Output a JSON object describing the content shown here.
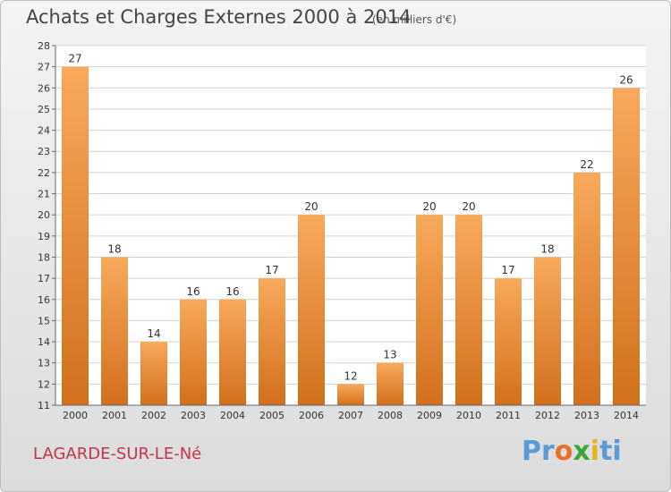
{
  "header": {
    "title": "Achats et Charges Externes 2000 à 2014",
    "unit": "(en milliers d'€)"
  },
  "footer": {
    "commune": "LAGARDE-SUR-LE-Né",
    "brand": [
      "Pr",
      "o",
      "x",
      "i",
      "ti"
    ]
  },
  "colors": {
    "bar_top": "#f8a95a",
    "bar_bottom": "#d2701c",
    "grid": "#d0d0d0"
  },
  "chart_data": {
    "type": "bar",
    "title": "Achats et Charges Externes 2000 à 2014",
    "subtitle": "(en milliers d'€)",
    "categories": [
      "2000",
      "2001",
      "2002",
      "2003",
      "2004",
      "2005",
      "2006",
      "2007",
      "2008",
      "2009",
      "2010",
      "2011",
      "2012",
      "2013",
      "2014"
    ],
    "values": [
      27,
      18,
      14,
      16,
      16,
      17,
      20,
      12,
      13,
      20,
      20,
      17,
      18,
      22,
      26
    ],
    "ylim": [
      11,
      28
    ],
    "yticks": [
      11,
      12,
      13,
      14,
      15,
      16,
      17,
      18,
      19,
      20,
      21,
      22,
      23,
      24,
      25,
      26,
      27,
      28
    ],
    "grid": true,
    "legend": "none"
  }
}
